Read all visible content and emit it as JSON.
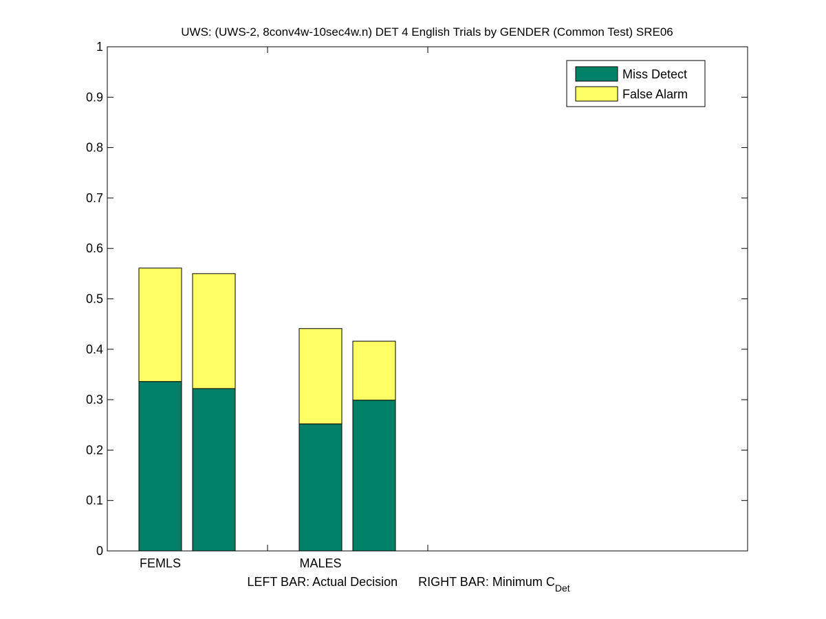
{
  "chart_data": {
    "type": "bar",
    "stacked": true,
    "title": "UWS: (UWS-2, 8conv4w-10sec4w.n) DET 4 English Trials by GENDER (Common Test) SRE06",
    "categories": [
      "FEMLS",
      "MALES"
    ],
    "bars": [
      {
        "category": "FEMLS",
        "position": "left",
        "miss": 0.336,
        "false_alarm": 0.225
      },
      {
        "category": "FEMLS",
        "position": "right",
        "miss": 0.322,
        "false_alarm": 0.228
      },
      {
        "category": "MALES",
        "position": "left",
        "miss": 0.252,
        "false_alarm": 0.189
      },
      {
        "category": "MALES",
        "position": "right",
        "miss": 0.299,
        "false_alarm": 0.117
      }
    ],
    "series": [
      {
        "name": "Miss Detect",
        "color": "#008066"
      },
      {
        "name": "False Alarm",
        "color": "#ffff66"
      }
    ],
    "xlabel_left": "LEFT BAR: Actual Decision",
    "xlabel_right": "RIGHT BAR: Minimum C",
    "xlabel_subscript": "Det",
    "ylim": [
      0,
      1
    ],
    "yticks": [
      "0",
      "0.1",
      "0.2",
      "0.3",
      "0.4",
      "0.5",
      "0.6",
      "0.7",
      "0.8",
      "0.9",
      "1"
    ],
    "legend_position": "top-right",
    "grid": false
  }
}
